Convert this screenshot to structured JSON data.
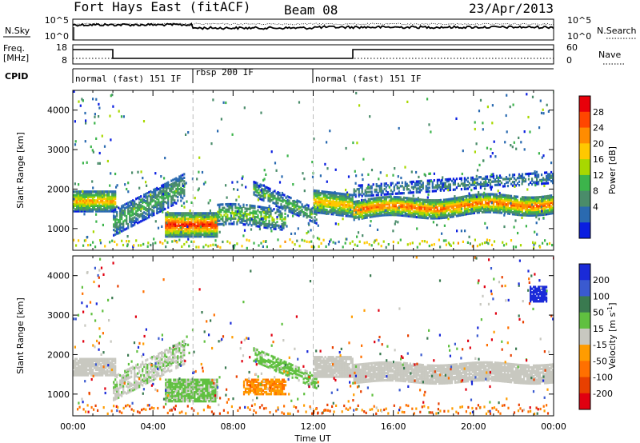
{
  "header": {
    "station": "Fort Hays East (fitACF)",
    "beam": "Beam 08",
    "date": "23/Apr/2013"
  },
  "noise_panel": {
    "left_label": "N.Sky",
    "right_label": "N.Search",
    "left_ticks": [
      "10^5",
      "10^0"
    ],
    "right_ticks": [
      "10^5",
      "10^0"
    ]
  },
  "freq_panel": {
    "left_label_1": "Freq.",
    "left_label_2": "[MHz]",
    "right_label": "Nave",
    "left_ticks": [
      "18",
      "8"
    ],
    "right_ticks": [
      "60",
      "0"
    ]
  },
  "cpid_panel": {
    "label": "CPID",
    "segments": [
      {
        "label": "normal (fast) 151 IF",
        "start": 0,
        "end": 6
      },
      {
        "label": "rbsp 200 IF",
        "start": 6,
        "end": 12
      },
      {
        "label": "normal (fast) 151 IF",
        "start": 12,
        "end": 24
      }
    ]
  },
  "chart_data": [
    {
      "type": "heatmap",
      "title": "",
      "xlabel": "",
      "ylabel": "Slant Range [km]",
      "xlim": [
        0,
        24
      ],
      "ylim": [
        450,
        4500
      ],
      "yticks": [
        1000,
        2000,
        3000,
        4000
      ],
      "colorbar": {
        "label": "Power [dB]",
        "ticks": [
          "28",
          "24",
          "20",
          "16",
          "12",
          "8",
          "4"
        ],
        "colors": [
          "#e8000a",
          "#ff4600",
          "#ff8c00",
          "#ffc800",
          "#a8d800",
          "#3cb44b",
          "#4a8c6a",
          "#2a6ab0",
          "#0a1ee0"
        ]
      },
      "features": [
        {
          "t": [
            0.0,
            2.0
          ],
          "center": 1700,
          "value": "~20-24 dB"
        },
        {
          "t": [
            2.0,
            5.5
          ],
          "center": 1900,
          "value": "~8-12 dB"
        },
        {
          "t": [
            4.5,
            7.0
          ],
          "center": 1050,
          "value": "~28-32 dB"
        },
        {
          "t": [
            7.0,
            10.5
          ],
          "center": 1300,
          "value": "~12-20 dB"
        },
        {
          "t": [
            12.0,
            14.0
          ],
          "center": 1600,
          "value": "~20-24 dB"
        },
        {
          "t": [
            14.0,
            24.0
          ],
          "center": 1600,
          "value": "~20-28 dB"
        }
      ]
    },
    {
      "type": "heatmap",
      "title": "",
      "xlabel": "Time UT",
      "ylabel": "Slant Range [km]",
      "xlim": [
        0,
        24
      ],
      "ylim": [
        450,
        4500
      ],
      "xticks": [
        "00:00",
        "04:00",
        "08:00",
        "12:00",
        "16:00",
        "20:00",
        "00:00"
      ],
      "yticks": [
        1000,
        2000,
        3000,
        4000
      ],
      "colorbar": {
        "label": "Velocity [m s^-1]",
        "ticks": [
          "200",
          "100",
          "50",
          "15",
          "-15",
          "-50",
          "-100",
          "-200"
        ],
        "colors": [
          "#1a2ad8",
          "#3a5ad0",
          "#3a7a50",
          "#60c040",
          "#c8c8c0",
          "#ff9c00",
          "#ff7000",
          "#e84000",
          "#e00010"
        ]
      },
      "features": [
        {
          "t": [
            0.0,
            14.0
          ],
          "center": 1700,
          "value": "ground scatter (gray)"
        },
        {
          "t": [
            4.5,
            8.0
          ],
          "center": 1100,
          "value": "green, positive"
        },
        {
          "t": [
            8.5,
            10.5
          ],
          "center": 1200,
          "value": "orange, negative"
        },
        {
          "t": [
            14.0,
            24.0
          ],
          "center": 1600,
          "value": "ground scatter (gray)"
        },
        {
          "t": [
            22.8,
            23.6
          ],
          "center": 3500,
          "value": "blue, ~200"
        }
      ]
    }
  ]
}
